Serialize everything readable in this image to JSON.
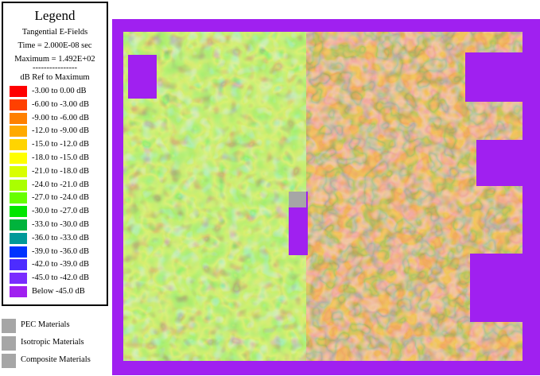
{
  "legend": {
    "title": "Legend",
    "field": "Tangential E-Fields",
    "time": "Time = 2.000E-08 sec",
    "maximum": "Maximum = 1.492E+02",
    "separator": "----------------",
    "ref": "dB Ref to Maximum",
    "ranges": [
      {
        "label": "-3.00 to  0.00 dB",
        "color": "#ff0000"
      },
      {
        "label": "-6.00 to -3.00 dB",
        "color": "#ff4000"
      },
      {
        "label": "-9.00 to -6.00 dB",
        "color": "#ff8000"
      },
      {
        "label": "-12.0 to -9.00 dB",
        "color": "#ffaa00"
      },
      {
        "label": "-15.0 to -12.0 dB",
        "color": "#ffd400"
      },
      {
        "label": "-18.0 to -15.0 dB",
        "color": "#ffff00"
      },
      {
        "label": "-21.0 to -18.0 dB",
        "color": "#d9ff00"
      },
      {
        "label": "-24.0 to -21.0 dB",
        "color": "#aaff00"
      },
      {
        "label": "-27.0 to -24.0 dB",
        "color": "#66ff00"
      },
      {
        "label": "-30.0 to -27.0 dB",
        "color": "#00e600"
      },
      {
        "label": "-33.0 to -30.0 dB",
        "color": "#00b33c"
      },
      {
        "label": "-36.0 to -33.0 dB",
        "color": "#009999"
      },
      {
        "label": "-39.0 to -36.0 dB",
        "color": "#0033ff"
      },
      {
        "label": "-42.0 to -39.0 dB",
        "color": "#4d2cff"
      },
      {
        "label": "-45.0 to -42.0 dB",
        "color": "#7a2cff"
      },
      {
        "label": "Below -45.0 dB",
        "color": "#a020f0"
      }
    ]
  },
  "materials": [
    {
      "label": "PEC Materials",
      "color": "#a6a6a6"
    },
    {
      "label": "Isotropic Materials",
      "color": "#a6a6a6"
    },
    {
      "label": "Composite Materials",
      "color": "#a6a6a6"
    }
  ],
  "plot": {
    "border_color": "#a020f0",
    "pec_color": "#a6a6a6"
  }
}
